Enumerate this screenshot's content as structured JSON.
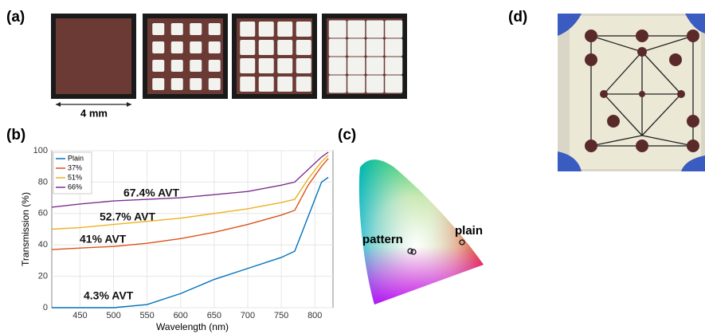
{
  "panels": {
    "a": "(a)",
    "b": "(b)",
    "c": "(c)",
    "d": "(d)"
  },
  "scale_label": "4 mm",
  "cie_labels": {
    "pattern": "pattern",
    "plain": "plain"
  },
  "chart_data": {
    "type": "line",
    "xlabel": "Wavelength (nm)",
    "ylabel": "Transmission (%)",
    "x": [
      408,
      450,
      500,
      550,
      600,
      650,
      700,
      750,
      770,
      790,
      810,
      820
    ],
    "series": [
      {
        "name": "Plain",
        "color": "#0072bd",
        "values": [
          0,
          0,
          0,
          2,
          9,
          18,
          25,
          32,
          36,
          58,
          80,
          83
        ]
      },
      {
        "name": "37%",
        "color": "#d95319",
        "values": [
          37,
          38,
          39,
          41,
          44,
          48,
          53,
          59,
          62,
          78,
          90,
          95
        ]
      },
      {
        "name": "51%",
        "color": "#edb120",
        "values": [
          50,
          51,
          53,
          55,
          57,
          60,
          63,
          67,
          69,
          82,
          93,
          97
        ]
      },
      {
        "name": "66%",
        "color": "#7e2f8e",
        "values": [
          64,
          66,
          68,
          69,
          70,
          72,
          74,
          78,
          80,
          88,
          96,
          99
        ]
      }
    ],
    "annotations": [
      "67.4% AVT",
      "52.7% AVT",
      "41% AVT",
      "4.3% AVT"
    ],
    "xlim": [
      408,
      827
    ],
    "ylim": [
      0,
      100
    ],
    "xticks": [
      450,
      500,
      550,
      600,
      650,
      700,
      750,
      800
    ],
    "yticks": [
      0,
      20,
      40,
      60,
      80,
      100
    ],
    "grid": true,
    "legend": "upper-left"
  }
}
